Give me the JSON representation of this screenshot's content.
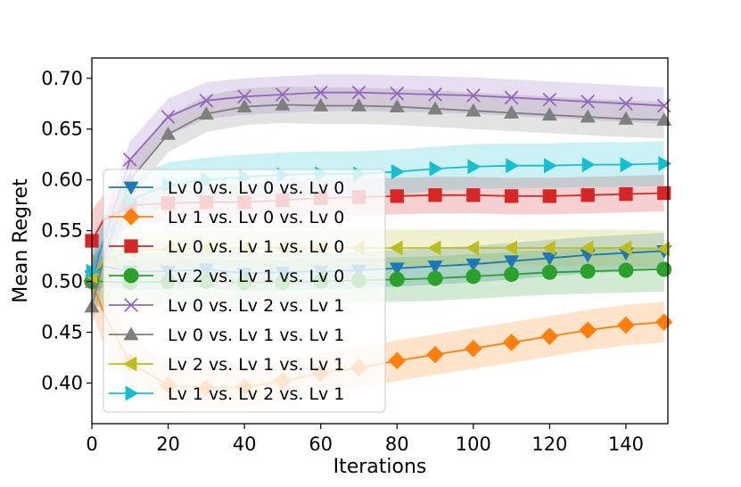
{
  "chart_data": {
    "type": "line",
    "title": "",
    "xlabel": "Iterations",
    "ylabel": "Mean Regret",
    "xlim": [
      0,
      151
    ],
    "ylim": [
      0.36,
      0.72
    ],
    "xticks": [
      0,
      20,
      40,
      60,
      80,
      100,
      120,
      140
    ],
    "yticks": [
      0.4,
      0.45,
      0.5,
      0.55,
      0.6,
      0.65,
      0.7
    ],
    "ytick_labels": [
      "0.40",
      "0.45",
      "0.50",
      "0.55",
      "0.60",
      "0.65",
      "0.70"
    ],
    "grid": false,
    "legend_position": "center-left",
    "marker_x": [
      0,
      10,
      20,
      30,
      40,
      50,
      60,
      70,
      80,
      90,
      100,
      110,
      120,
      130,
      140,
      150
    ],
    "series": [
      {
        "name": "Lv 0 vs. Lv 0 vs. Lv 0",
        "color": "#1f77b4",
        "marker": "triangle-down",
        "x": [
          0,
          3,
          10,
          20,
          30,
          40,
          50,
          60,
          70,
          80,
          90,
          100,
          110,
          120,
          130,
          140,
          150
        ],
        "y": [
          0.505,
          0.515,
          0.51,
          0.51,
          0.512,
          0.508,
          0.509,
          0.51,
          0.511,
          0.513,
          0.515,
          0.517,
          0.52,
          0.523,
          0.526,
          0.528,
          0.53
        ],
        "band": [
          0.02,
          0.02,
          0.018,
          0.018,
          0.018,
          0.018,
          0.018,
          0.018,
          0.018,
          0.018,
          0.018,
          0.018,
          0.018,
          0.018,
          0.018,
          0.018,
          0.018
        ]
      },
      {
        "name": "Lv 1 vs. Lv 0 vs. Lv 0",
        "color": "#ff7f0e",
        "marker": "diamond",
        "x": [
          0,
          3,
          10,
          20,
          30,
          40,
          50,
          60,
          70,
          80,
          90,
          100,
          110,
          120,
          130,
          140,
          150
        ],
        "y": [
          0.5,
          0.47,
          0.42,
          0.398,
          0.395,
          0.396,
          0.402,
          0.41,
          0.415,
          0.422,
          0.428,
          0.434,
          0.44,
          0.446,
          0.452,
          0.457,
          0.46
        ],
        "band": [
          0.03,
          0.03,
          0.025,
          0.02,
          0.02,
          0.02,
          0.02,
          0.02,
          0.02,
          0.02,
          0.02,
          0.02,
          0.02,
          0.02,
          0.02,
          0.02,
          0.02
        ]
      },
      {
        "name": "Lv 0 vs. Lv 1 vs. Lv 0",
        "color": "#d62728",
        "marker": "square",
        "x": [
          0,
          3,
          10,
          20,
          30,
          40,
          50,
          60,
          70,
          80,
          90,
          100,
          110,
          120,
          130,
          140,
          150
        ],
        "y": [
          0.54,
          0.56,
          0.575,
          0.577,
          0.578,
          0.578,
          0.58,
          0.582,
          0.583,
          0.584,
          0.585,
          0.585,
          0.584,
          0.584,
          0.585,
          0.586,
          0.587
        ],
        "band": [
          0.03,
          0.025,
          0.02,
          0.018,
          0.018,
          0.018,
          0.018,
          0.018,
          0.018,
          0.018,
          0.018,
          0.018,
          0.018,
          0.018,
          0.018,
          0.018,
          0.018
        ]
      },
      {
        "name": "Lv 2 vs. Lv 1 vs. Lv 0",
        "color": "#2ca02c",
        "marker": "circle",
        "x": [
          0,
          3,
          10,
          20,
          30,
          40,
          50,
          60,
          70,
          80,
          90,
          100,
          110,
          120,
          130,
          140,
          150
        ],
        "y": [
          0.5,
          0.5,
          0.499,
          0.5,
          0.5,
          0.499,
          0.499,
          0.5,
          0.501,
          0.502,
          0.503,
          0.505,
          0.507,
          0.509,
          0.51,
          0.511,
          0.512
        ],
        "band": [
          0.025,
          0.025,
          0.022,
          0.022,
          0.022,
          0.022,
          0.022,
          0.022,
          0.022,
          0.022,
          0.022,
          0.022,
          0.022,
          0.022,
          0.022,
          0.022,
          0.022
        ]
      },
      {
        "name": "Lv 0 vs. Lv 2 vs. Lv 1",
        "color": "#9467bd",
        "marker": "x",
        "x": [
          0,
          3,
          10,
          20,
          30,
          40,
          50,
          60,
          70,
          80,
          90,
          100,
          110,
          120,
          130,
          140,
          150
        ],
        "y": [
          0.5,
          0.54,
          0.62,
          0.662,
          0.678,
          0.682,
          0.684,
          0.686,
          0.686,
          0.685,
          0.684,
          0.683,
          0.681,
          0.679,
          0.677,
          0.675,
          0.673
        ],
        "band": [
          0.02,
          0.02,
          0.018,
          0.018,
          0.018,
          0.018,
          0.018,
          0.018,
          0.018,
          0.018,
          0.018,
          0.018,
          0.018,
          0.018,
          0.018,
          0.018,
          0.018
        ]
      },
      {
        "name": "Lv 0 vs. Lv 1 vs. Lv 1",
        "color": "#7f7f7f",
        "marker": "triangle-up",
        "x": [
          0,
          3,
          10,
          20,
          30,
          40,
          50,
          60,
          70,
          80,
          90,
          100,
          110,
          120,
          130,
          140,
          150
        ],
        "y": [
          0.475,
          0.52,
          0.6,
          0.645,
          0.665,
          0.672,
          0.674,
          0.673,
          0.673,
          0.672,
          0.67,
          0.668,
          0.666,
          0.664,
          0.662,
          0.66,
          0.659
        ],
        "band": [
          0.02,
          0.02,
          0.018,
          0.018,
          0.018,
          0.018,
          0.018,
          0.018,
          0.018,
          0.018,
          0.018,
          0.018,
          0.018,
          0.018,
          0.018,
          0.018,
          0.018
        ]
      },
      {
        "name": "Lv 2 vs. Lv 1 vs. Lv 1",
        "color": "#bcbd22",
        "marker": "triangle-left",
        "x": [
          0,
          3,
          10,
          20,
          30,
          40,
          50,
          60,
          70,
          80,
          90,
          100,
          110,
          120,
          130,
          140,
          150
        ],
        "y": [
          0.505,
          0.52,
          0.53,
          0.532,
          0.533,
          0.533,
          0.533,
          0.533,
          0.533,
          0.533,
          0.533,
          0.533,
          0.533,
          0.533,
          0.533,
          0.533,
          0.532
        ],
        "band": [
          0.02,
          0.02,
          0.018,
          0.018,
          0.018,
          0.018,
          0.018,
          0.018,
          0.018,
          0.018,
          0.018,
          0.018,
          0.018,
          0.018,
          0.018,
          0.018,
          0.018
        ]
      },
      {
        "name": "Lv 1 vs. Lv 2 vs. Lv 1",
        "color": "#17becf",
        "marker": "triangle-right",
        "x": [
          0,
          3,
          10,
          20,
          30,
          40,
          50,
          60,
          70,
          80,
          90,
          100,
          110,
          120,
          130,
          140,
          150
        ],
        "y": [
          0.51,
          0.54,
          0.58,
          0.595,
          0.6,
          0.603,
          0.605,
          0.606,
          0.606,
          0.608,
          0.611,
          0.613,
          0.614,
          0.614,
          0.615,
          0.615,
          0.616
        ],
        "band": [
          0.025,
          0.025,
          0.022,
          0.022,
          0.022,
          0.022,
          0.022,
          0.022,
          0.022,
          0.022,
          0.022,
          0.022,
          0.022,
          0.022,
          0.022,
          0.022,
          0.022
        ]
      }
    ]
  }
}
